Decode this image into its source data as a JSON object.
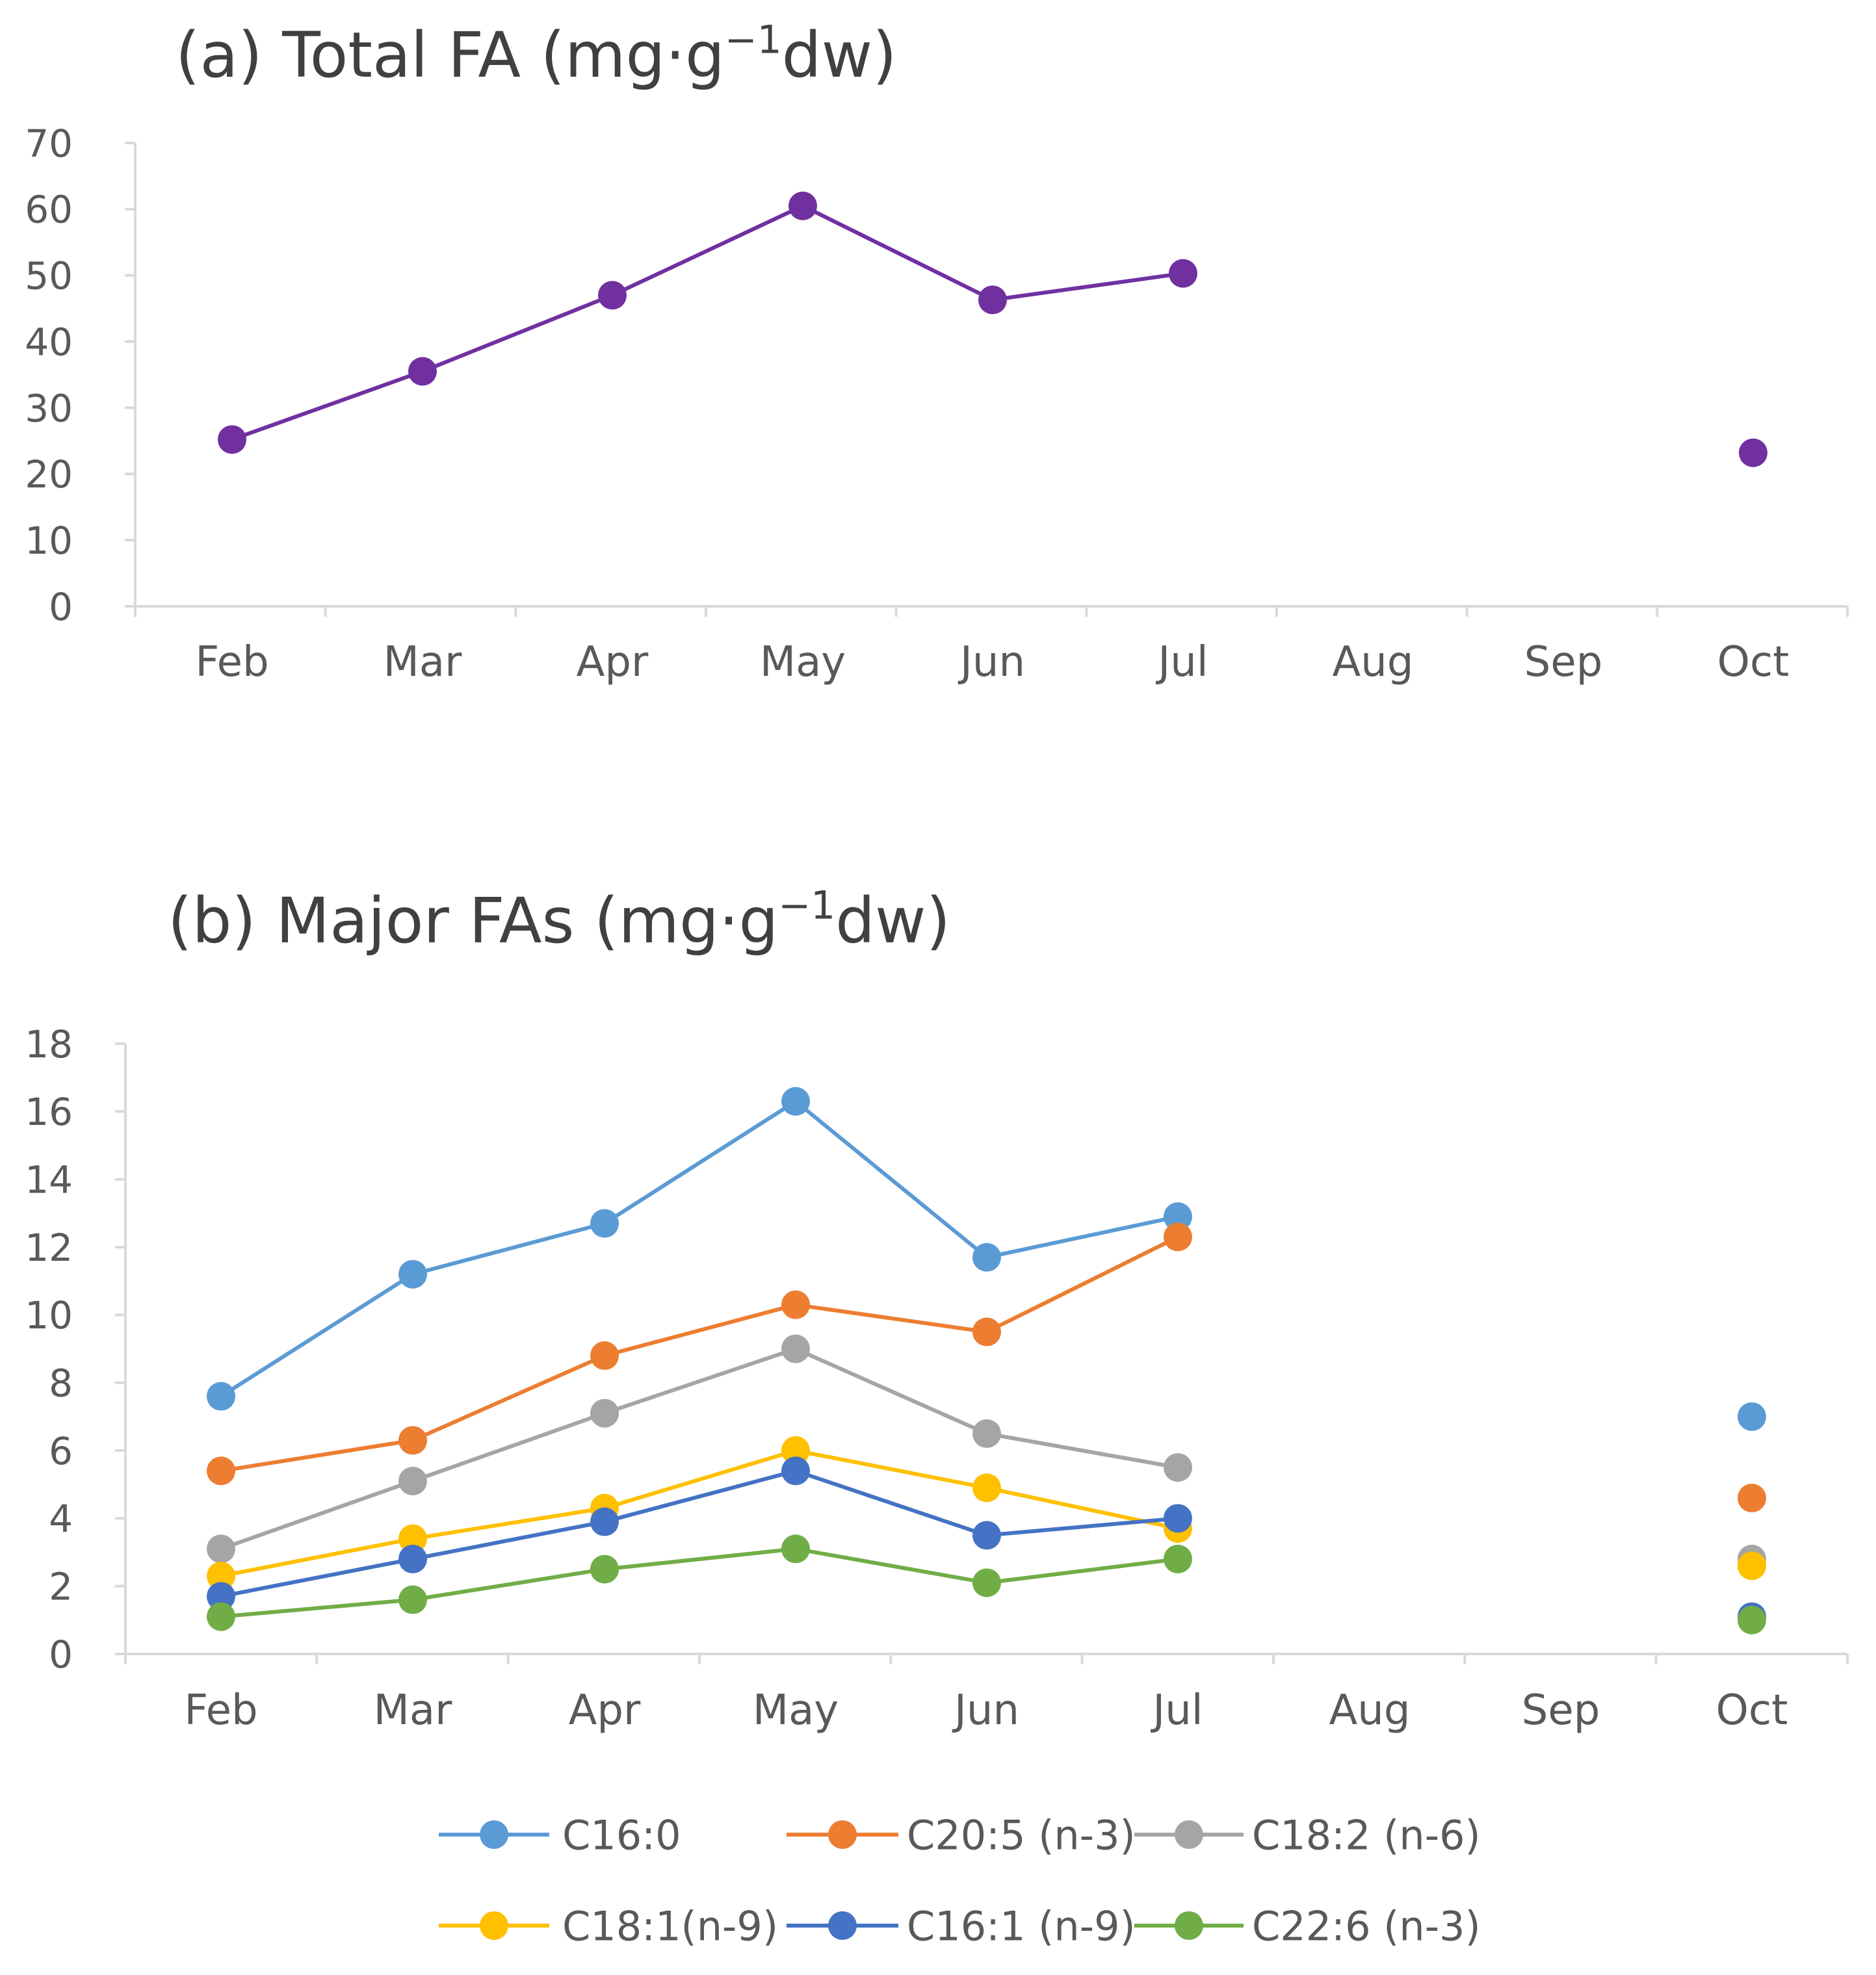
{
  "chart_data": [
    {
      "type": "line",
      "title_prefix": "(a) Total FA (mg·g",
      "title_sup": "−1",
      "title_suffix": "dw)",
      "categories": [
        "Feb",
        "Mar",
        "Apr",
        "May",
        "Jun",
        "Jul",
        "Aug",
        "Sep",
        "Oct"
      ],
      "ylim": [
        0,
        70
      ],
      "yticks": [
        "0",
        "10",
        "20",
        "30",
        "40",
        "50",
        "60",
        "70"
      ],
      "xlabel": "",
      "ylabel": "",
      "series": [
        {
          "name": "Total FA",
          "color": "#7030A0",
          "values": [
            25.2,
            35.5,
            47.0,
            60.5,
            46.3,
            50.3,
            null,
            null,
            23.2
          ]
        }
      ]
    },
    {
      "type": "line",
      "title_prefix": "(b) Major FAs (mg·g",
      "title_sup": "−1",
      "title_suffix": "dw)",
      "categories": [
        "Feb",
        "Mar",
        "Apr",
        "May",
        "Jun",
        "Jul",
        "Aug",
        "Sep",
        "Oct"
      ],
      "ylim": [
        0,
        18
      ],
      "yticks": [
        "0",
        "2",
        "4",
        "6",
        "8",
        "10",
        "12",
        "14",
        "16",
        "18"
      ],
      "xlabel": "",
      "ylabel": "",
      "legend_position": "bottom",
      "series": [
        {
          "name": "C16:0",
          "color": "#5B9BD5",
          "values": [
            7.6,
            11.2,
            12.7,
            16.3,
            11.7,
            12.9,
            null,
            null,
            7.0
          ]
        },
        {
          "name": "C20:5 (n-3)",
          "color": "#ED7D31",
          "values": [
            5.4,
            6.3,
            8.8,
            10.3,
            9.5,
            12.3,
            null,
            null,
            4.6
          ]
        },
        {
          "name": "C18:2 (n-6)",
          "color": "#A5A5A5",
          "values": [
            3.1,
            5.1,
            7.1,
            9.0,
            6.5,
            5.5,
            null,
            null,
            2.8
          ]
        },
        {
          "name": "C18:1(n-9)",
          "color": "#FFC000",
          "values": [
            2.3,
            3.4,
            4.3,
            6.0,
            4.9,
            3.7,
            null,
            null,
            2.6
          ]
        },
        {
          "name": "C16:1 (n-9)",
          "color": "#4472C4",
          "values": [
            1.7,
            2.8,
            3.9,
            5.4,
            3.5,
            4.0,
            null,
            null,
            1.1
          ]
        },
        {
          "name": "C22:6 (n-3)",
          "color": "#70AD47",
          "values": [
            1.1,
            1.6,
            2.5,
            3.1,
            2.1,
            2.8,
            null,
            null,
            1.0
          ]
        }
      ]
    }
  ]
}
